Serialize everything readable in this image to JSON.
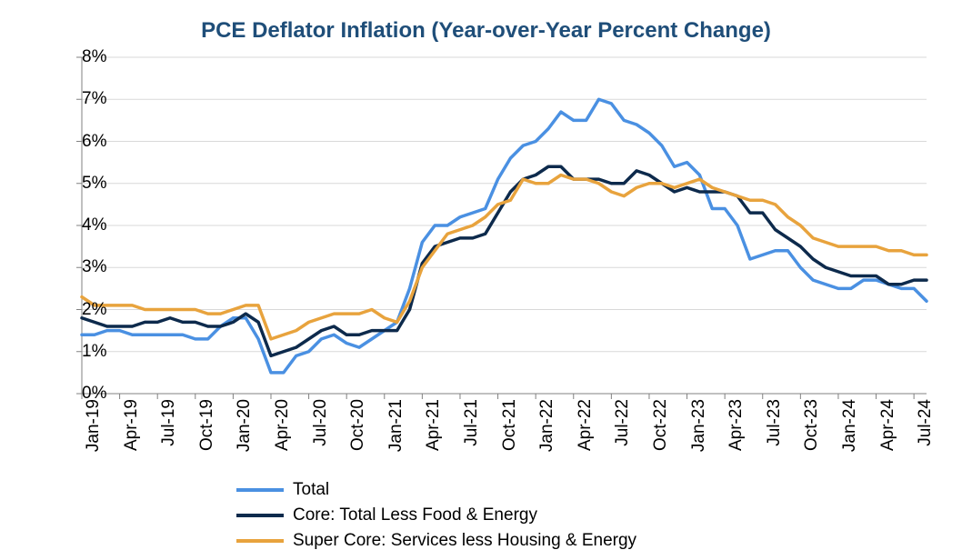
{
  "chart": {
    "type": "line",
    "title": "PCE Deflator Inflation (Year-over-Year Percent Change)",
    "title_color": "#1f4e79",
    "title_fontsize": 24,
    "background_color": "#ffffff",
    "grid_color": "#d9d9d9",
    "axis_color": "#808080",
    "ylim": [
      0,
      8
    ],
    "ytick_step": 1,
    "ytick_suffix": "%",
    "label_fontsize": 19,
    "line_width": 3.5,
    "x_categories": [
      "Jan-19",
      "Feb-19",
      "Mar-19",
      "Apr-19",
      "May-19",
      "Jun-19",
      "Jul-19",
      "Aug-19",
      "Sep-19",
      "Oct-19",
      "Nov-19",
      "Dec-19",
      "Jan-20",
      "Feb-20",
      "Mar-20",
      "Apr-20",
      "May-20",
      "Jun-20",
      "Jul-20",
      "Aug-20",
      "Sep-20",
      "Oct-20",
      "Nov-20",
      "Dec-20",
      "Jan-21",
      "Feb-21",
      "Mar-21",
      "Apr-21",
      "May-21",
      "Jun-21",
      "Jul-21",
      "Aug-21",
      "Sep-21",
      "Oct-21",
      "Nov-21",
      "Dec-21",
      "Jan-22",
      "Feb-22",
      "Mar-22",
      "Apr-22",
      "May-22",
      "Jun-22",
      "Jul-22",
      "Aug-22",
      "Sep-22",
      "Oct-22",
      "Nov-22",
      "Dec-22",
      "Jan-23",
      "Feb-23",
      "Mar-23",
      "Apr-23",
      "May-23",
      "Jun-23",
      "Jul-23",
      "Aug-23",
      "Sep-23",
      "Oct-23",
      "Nov-23",
      "Dec-23",
      "Jan-24",
      "Feb-24",
      "Mar-24",
      "Apr-24",
      "May-24",
      "Jun-24",
      "Jul-24",
      "Aug-24"
    ],
    "x_tick_every": 3,
    "x_label_rotation": -90,
    "series": [
      {
        "name": "Total",
        "color": "#4a90e2",
        "values": [
          1.4,
          1.4,
          1.5,
          1.5,
          1.4,
          1.4,
          1.4,
          1.4,
          1.4,
          1.3,
          1.3,
          1.6,
          1.8,
          1.8,
          1.3,
          0.5,
          0.5,
          0.9,
          1.0,
          1.3,
          1.4,
          1.2,
          1.1,
          1.3,
          1.5,
          1.7,
          2.5,
          3.6,
          4.0,
          4.0,
          4.2,
          4.3,
          4.4,
          5.1,
          5.6,
          5.9,
          6.0,
          6.3,
          6.7,
          6.5,
          6.5,
          7.0,
          6.9,
          6.5,
          6.4,
          6.2,
          5.9,
          5.4,
          5.5,
          5.2,
          4.4,
          4.4,
          4.0,
          3.2,
          3.3,
          3.4,
          3.4,
          3.0,
          2.7,
          2.6,
          2.5,
          2.5,
          2.7,
          2.7,
          2.6,
          2.5,
          2.5,
          2.2
        ]
      },
      {
        "name": "Core: Total Less Food & Energy",
        "color": "#0d2a4c",
        "values": [
          1.8,
          1.7,
          1.6,
          1.6,
          1.6,
          1.7,
          1.7,
          1.8,
          1.7,
          1.7,
          1.6,
          1.6,
          1.7,
          1.9,
          1.7,
          0.9,
          1.0,
          1.1,
          1.3,
          1.5,
          1.6,
          1.4,
          1.4,
          1.5,
          1.5,
          1.5,
          2.0,
          3.1,
          3.5,
          3.6,
          3.7,
          3.7,
          3.8,
          4.3,
          4.8,
          5.1,
          5.2,
          5.4,
          5.4,
          5.1,
          5.1,
          5.1,
          5.0,
          5.0,
          5.3,
          5.2,
          5.0,
          4.8,
          4.9,
          4.8,
          4.8,
          4.8,
          4.7,
          4.3,
          4.3,
          3.9,
          3.7,
          3.5,
          3.2,
          3.0,
          2.9,
          2.8,
          2.8,
          2.8,
          2.6,
          2.6,
          2.7,
          2.7
        ]
      },
      {
        "name": "Super Core: Services less Housing & Energy",
        "color": "#e8a33d",
        "values": [
          2.3,
          2.1,
          2.1,
          2.1,
          2.1,
          2.0,
          2.0,
          2.0,
          2.0,
          2.0,
          1.9,
          1.9,
          2.0,
          2.1,
          2.1,
          1.3,
          1.4,
          1.5,
          1.7,
          1.8,
          1.9,
          1.9,
          1.9,
          2.0,
          1.8,
          1.7,
          2.2,
          3.0,
          3.4,
          3.8,
          3.9,
          4.0,
          4.2,
          4.5,
          4.6,
          5.1,
          5.0,
          5.0,
          5.2,
          5.1,
          5.1,
          5.0,
          4.8,
          4.7,
          4.9,
          5.0,
          5.0,
          4.9,
          5.0,
          5.1,
          4.9,
          4.8,
          4.7,
          4.6,
          4.6,
          4.5,
          4.2,
          4.0,
          3.7,
          3.6,
          3.5,
          3.5,
          3.5,
          3.5,
          3.4,
          3.4,
          3.3,
          3.3
        ]
      }
    ],
    "legend_position": "bottom-left"
  }
}
